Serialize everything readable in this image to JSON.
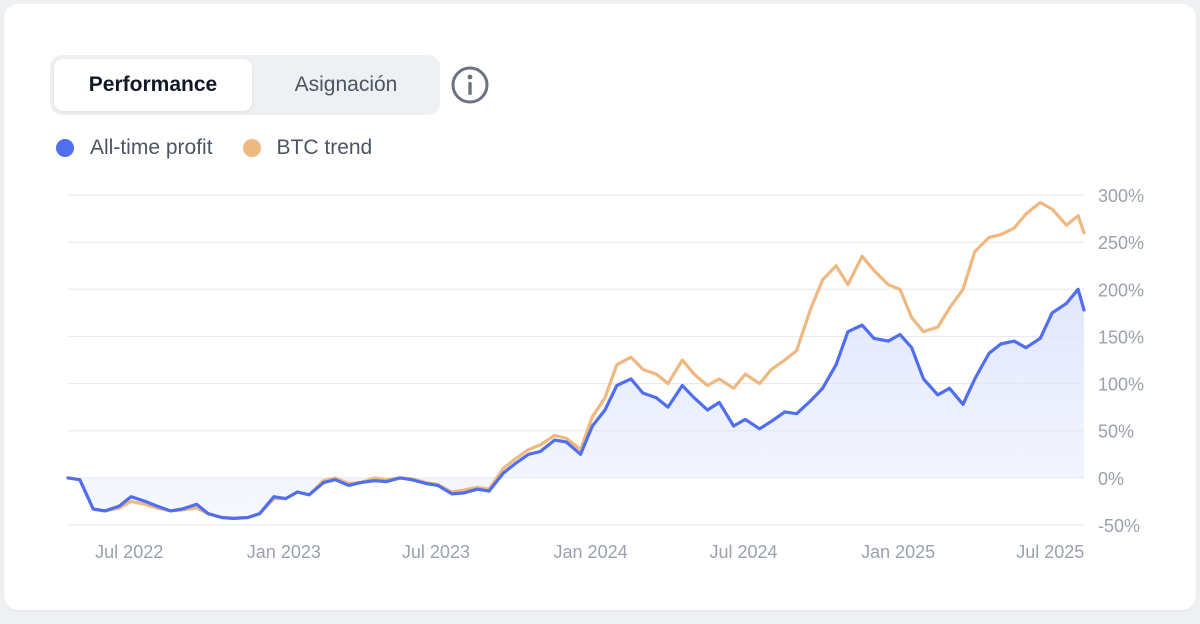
{
  "tabs": {
    "active_label": "Performance",
    "inactive_label": "Asignación"
  },
  "info_icon": "info-icon",
  "colors": {
    "profit": "#4f6ef0",
    "btc": "#efb880",
    "area_top": "#dfe5fc",
    "grid": "#e5e7eb",
    "tick": "#9aa1ad"
  },
  "chart_data": {
    "type": "line",
    "title": "",
    "xlabel": "",
    "ylabel": "",
    "legend": "top-left",
    "grid": true,
    "ylim": [
      -50,
      300
    ],
    "y_ticks": [
      "300%",
      "250%",
      "200%",
      "150%",
      "100%",
      "50%",
      "0%",
      "-50%"
    ],
    "y_tick_values": [
      300,
      250,
      200,
      150,
      100,
      50,
      0,
      -50
    ],
    "x_ticks": [
      "Jul 2022",
      "Jan 2023",
      "Jul 2023",
      "Jan 2024",
      "Jul 2024",
      "Jan 2025",
      "Jul 2025"
    ],
    "x_tick_dates": [
      "2022-07-01",
      "2023-01-01",
      "2023-07-01",
      "2024-01-01",
      "2024-07-01",
      "2025-01-01",
      "2025-07-01"
    ],
    "x_range": [
      "2022-06-01",
      "2025-09-22"
    ],
    "x": [
      "2022-06-01",
      "2022-06-15",
      "2022-07-01",
      "2022-07-15",
      "2022-08-01",
      "2022-08-15",
      "2022-09-01",
      "2022-09-15",
      "2022-10-01",
      "2022-10-15",
      "2022-11-01",
      "2022-11-15",
      "2022-12-01",
      "2022-12-15",
      "2023-01-01",
      "2023-01-15",
      "2023-02-01",
      "2023-02-15",
      "2023-03-01",
      "2023-03-15",
      "2023-04-01",
      "2023-04-15",
      "2023-05-01",
      "2023-05-15",
      "2023-06-01",
      "2023-06-15",
      "2023-07-01",
      "2023-07-15",
      "2023-08-01",
      "2023-08-15",
      "2023-09-01",
      "2023-09-15",
      "2023-10-01",
      "2023-10-15",
      "2023-11-01",
      "2023-11-15",
      "2023-12-01",
      "2023-12-15",
      "2024-01-01",
      "2024-01-15",
      "2024-02-01",
      "2024-02-15",
      "2024-03-01",
      "2024-03-15",
      "2024-04-01",
      "2024-04-15",
      "2024-05-01",
      "2024-05-15",
      "2024-06-01",
      "2024-06-15",
      "2024-07-01",
      "2024-07-15",
      "2024-08-01",
      "2024-08-15",
      "2024-09-01",
      "2024-09-15",
      "2024-10-01",
      "2024-10-15",
      "2024-11-01",
      "2024-11-15",
      "2024-12-01",
      "2024-12-15",
      "2025-01-01",
      "2025-01-15",
      "2025-02-01",
      "2025-02-15",
      "2025-03-01",
      "2025-03-15",
      "2025-04-01",
      "2025-04-15",
      "2025-05-01",
      "2025-05-15",
      "2025-06-01",
      "2025-06-15",
      "2025-07-01",
      "2025-07-15",
      "2025-08-01",
      "2025-08-15",
      "2025-09-01",
      "2025-09-15",
      "2025-09-22"
    ],
    "series": [
      {
        "name": "All-time profit",
        "color": "#4f6ef0",
        "values": [
          0,
          -2,
          -33,
          -35,
          -30,
          -20,
          -25,
          -30,
          -35,
          -33,
          -28,
          -38,
          -42,
          -43,
          -42,
          -38,
          -20,
          -22,
          -15,
          -18,
          -5,
          -2,
          -8,
          -5,
          -3,
          -4,
          0,
          -2,
          -6,
          -8,
          -17,
          -16,
          -12,
          -14,
          5,
          15,
          25,
          28,
          40,
          38,
          25,
          55,
          72,
          98,
          105,
          90,
          85,
          75,
          98,
          85,
          72,
          80,
          55,
          62,
          52,
          60,
          70,
          68,
          82,
          95,
          120,
          155,
          162,
          148,
          145,
          152,
          138,
          105,
          88,
          95,
          78,
          105,
          132,
          142,
          145,
          138,
          148,
          175,
          185,
          200,
          178
        ]
      },
      {
        "name": "BTC trend",
        "color": "#efb880",
        "values": [
          0,
          -2,
          -33,
          -35,
          -32,
          -25,
          -28,
          -32,
          -35,
          -34,
          -32,
          -38,
          -42,
          -43,
          -42,
          -38,
          -22,
          -22,
          -15,
          -18,
          -3,
          0,
          -6,
          -5,
          0,
          -2,
          0,
          -1,
          -5,
          -7,
          -15,
          -13,
          -10,
          -12,
          10,
          20,
          30,
          35,
          45,
          42,
          30,
          65,
          85,
          120,
          128,
          115,
          110,
          100,
          125,
          110,
          98,
          105,
          95,
          110,
          100,
          115,
          125,
          135,
          180,
          210,
          225,
          205,
          235,
          220,
          205,
          200,
          170,
          155,
          160,
          180,
          200,
          240,
          255,
          258,
          265,
          280,
          292,
          285,
          268,
          278,
          260
        ]
      }
    ]
  }
}
